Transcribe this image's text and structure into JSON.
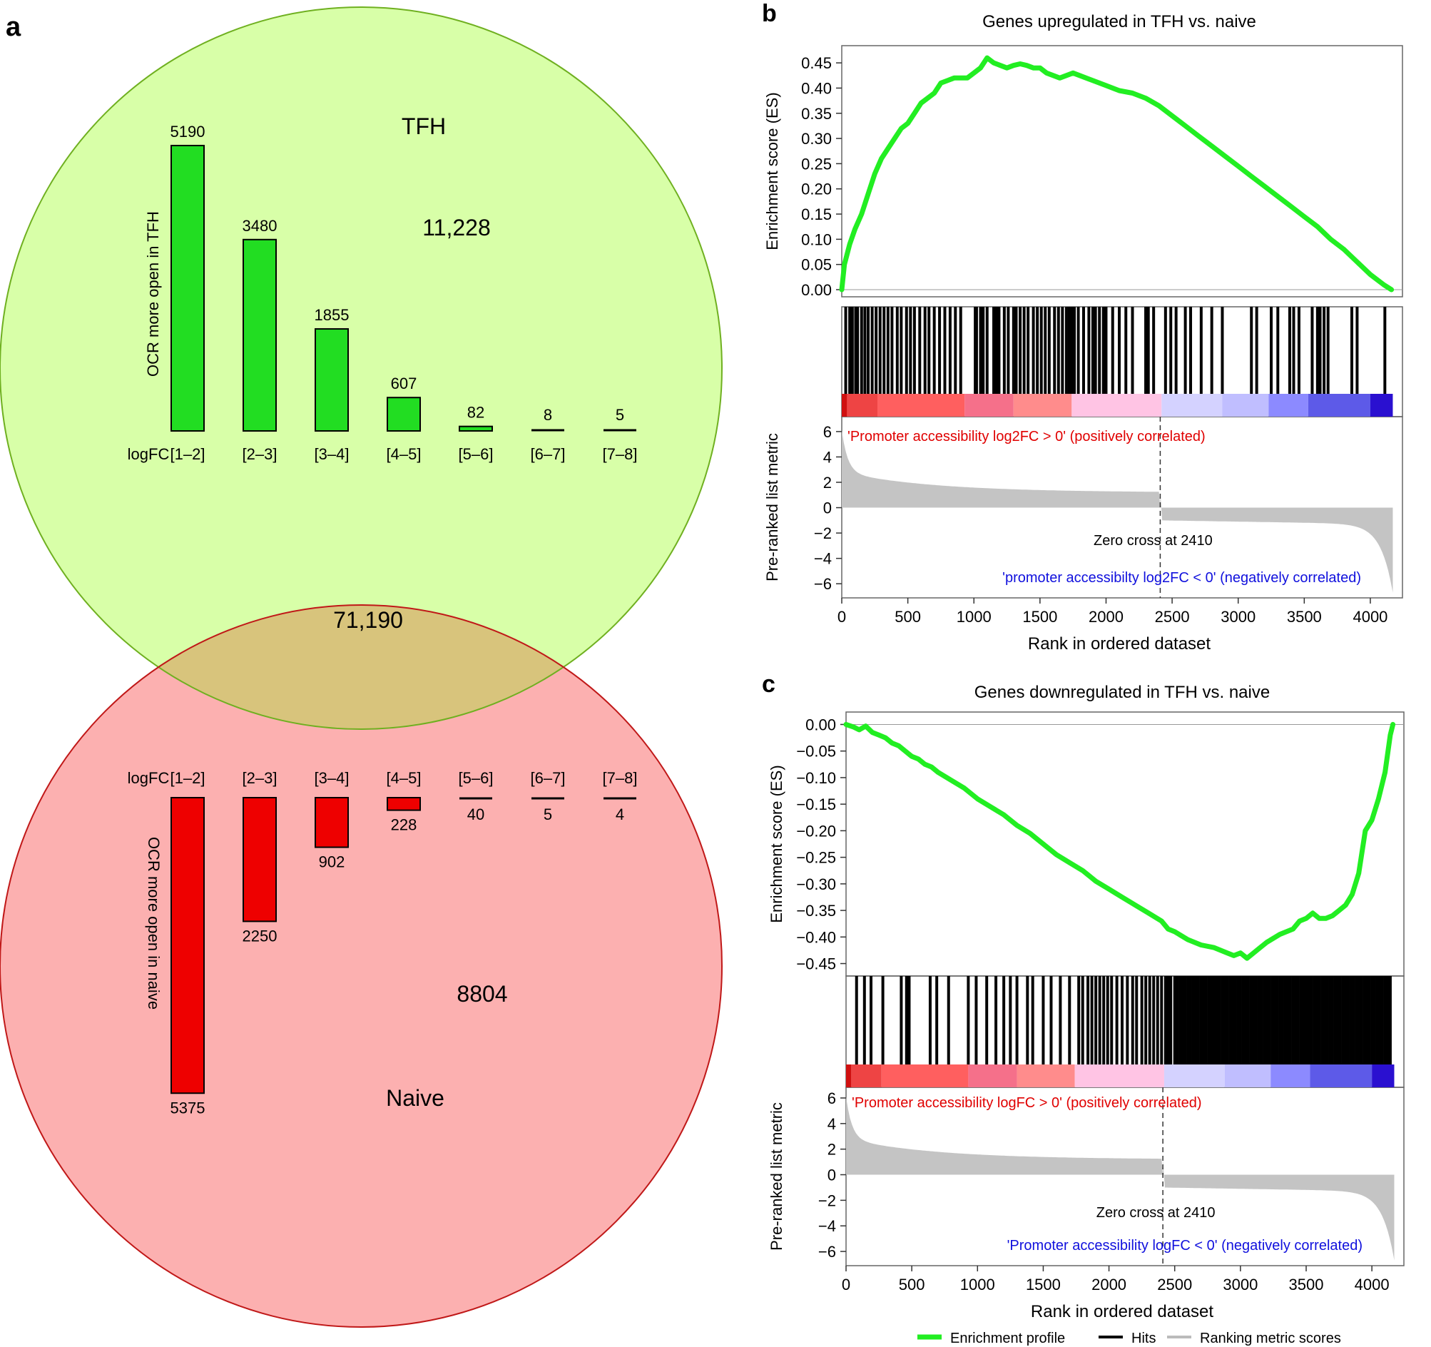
{
  "panels": {
    "a": {
      "label": "a",
      "venn": {
        "tfh_label": "TFH",
        "naive_label": "Naive",
        "tfh_only": "11,228",
        "overlap": "71,190",
        "naive_only": "8804",
        "colors": {
          "tfh_fill": "#d8ffa8",
          "tfh_stroke": "#6fb020",
          "naive_fill": "#fcb0b0",
          "naive_stroke": "#c01818",
          "overlap_fill": "#d8c47c"
        }
      }
    },
    "b": {
      "label": "b"
    },
    "c": {
      "label": "c"
    }
  },
  "chart_data": [
    {
      "id": "tfh-bars",
      "type": "bar",
      "title": "",
      "ylabel": "OCR more open in TFH",
      "xlabel_prefix": "logFC",
      "categories": [
        "[1–2]",
        "[2–3]",
        "[3–4]",
        "[4–5]",
        "[5–6]",
        "[6–7]",
        "[7–8]"
      ],
      "values": [
        5190,
        3480,
        1855,
        607,
        82,
        8,
        5
      ],
      "value_labels": [
        "5190",
        "3480",
        "1855",
        "607",
        "82",
        "8",
        "5"
      ],
      "color": "#22dd22",
      "direction": "up"
    },
    {
      "id": "naive-bars",
      "type": "bar",
      "title": "",
      "ylabel": "OCR more open in naive",
      "xlabel_prefix": "logFC",
      "categories": [
        "[1–2]",
        "[2–3]",
        "[3–4]",
        "[4–5]",
        "[5–6]",
        "[6–7]",
        "[7–8]"
      ],
      "values": [
        5375,
        2250,
        902,
        228,
        40,
        5,
        4
      ],
      "value_labels": [
        "5375",
        "2250",
        "902",
        "228",
        "40",
        "5",
        "4"
      ],
      "color": "#ee0000",
      "direction": "down"
    },
    {
      "id": "gsea-up",
      "type": "line",
      "title": "Genes upregulated in TFH vs. naive",
      "ylabel": "Enrichment score (ES)",
      "ylim": [
        0,
        0.47
      ],
      "yticks": [
        "0.45",
        "0.40",
        "0.35",
        "0.30",
        "0.25",
        "0.20",
        "0.15",
        "0.10",
        "0.05",
        "0.00"
      ],
      "x": [
        0,
        20,
        60,
        100,
        150,
        200,
        250,
        300,
        350,
        400,
        450,
        500,
        550,
        600,
        650,
        700,
        750,
        800,
        850,
        900,
        950,
        1000,
        1050,
        1100,
        1150,
        1200,
        1250,
        1300,
        1350,
        1400,
        1450,
        1500,
        1550,
        1600,
        1650,
        1700,
        1750,
        1800,
        1900,
        2000,
        2100,
        2200,
        2300,
        2400,
        2500,
        2600,
        2700,
        2800,
        2900,
        3000,
        3100,
        3200,
        3300,
        3400,
        3500,
        3600,
        3700,
        3800,
        3900,
        4000,
        4100,
        4160
      ],
      "y": [
        0.0,
        0.05,
        0.09,
        0.12,
        0.15,
        0.19,
        0.23,
        0.26,
        0.28,
        0.3,
        0.32,
        0.33,
        0.35,
        0.37,
        0.38,
        0.39,
        0.41,
        0.415,
        0.42,
        0.42,
        0.42,
        0.43,
        0.44,
        0.46,
        0.45,
        0.445,
        0.44,
        0.445,
        0.448,
        0.445,
        0.44,
        0.44,
        0.43,
        0.425,
        0.42,
        0.425,
        0.43,
        0.425,
        0.415,
        0.405,
        0.395,
        0.39,
        0.38,
        0.365,
        0.345,
        0.325,
        0.305,
        0.285,
        0.265,
        0.245,
        0.225,
        0.205,
        0.185,
        0.165,
        0.145,
        0.125,
        0.1,
        0.08,
        0.055,
        0.03,
        0.01,
        0.0
      ],
      "hits": [
        30,
        60,
        80,
        105,
        120,
        150,
        175,
        200,
        230,
        260,
        290,
        320,
        350,
        380,
        420,
        450,
        490,
        520,
        550,
        590,
        630,
        660,
        700,
        740,
        780,
        820,
        860,
        900,
        1010,
        1020,
        1050,
        1070,
        1100,
        1150,
        1170,
        1190,
        1230,
        1260,
        1300,
        1320,
        1350,
        1380,
        1410,
        1450,
        1480,
        1510,
        1540,
        1570,
        1610,
        1640,
        1670,
        1700,
        1720,
        1740,
        1760,
        1790,
        1830,
        1870,
        1900,
        1920,
        1950,
        1980,
        2000,
        2050,
        2100,
        2150,
        2200,
        2300,
        2320,
        2360,
        2450,
        2490,
        2530,
        2600,
        2640,
        2720,
        2800,
        2880,
        3100,
        3140,
        3250,
        3300,
        3390,
        3420,
        3460,
        3560,
        3600,
        3620,
        3650,
        3680,
        3860,
        3900,
        4110
      ],
      "heatmap": [
        {
          "start": 0,
          "end": 40,
          "color": "#d01010"
        },
        {
          "start": 40,
          "end": 270,
          "color": "#ee4444"
        },
        {
          "start": 270,
          "end": 930,
          "color": "#ff5f5f"
        },
        {
          "start": 930,
          "end": 1300,
          "color": "#f5708a"
        },
        {
          "start": 1300,
          "end": 1740,
          "color": "#ff8c8c"
        },
        {
          "start": 1740,
          "end": 2420,
          "color": "#ffc4e4"
        },
        {
          "start": 2420,
          "end": 2880,
          "color": "#d4d2ff"
        },
        {
          "start": 2880,
          "end": 3230,
          "color": "#c0beff"
        },
        {
          "start": 3230,
          "end": 3530,
          "color": "#8c8aff"
        },
        {
          "start": 3530,
          "end": 4000,
          "color": "#5d5ae8"
        },
        {
          "start": 4000,
          "end": 4170,
          "color": "#2a10d0"
        }
      ],
      "metric_ylabel": "Pre-ranked list metric",
      "metric_yticks": [
        "6",
        "4",
        "2",
        "0",
        "−2",
        "−4",
        "−6"
      ],
      "metric_ylim": [
        -7,
        6.5
      ],
      "metric_positive_label": "'Promoter accessibility log2FC > 0' (positively correlated)",
      "metric_negative_label": "'promoter accessibilty log2FC < 0' (negatively correlated)",
      "zero_cross_label": "Zero cross at 2410",
      "zero_cross": 2410,
      "xlabel": "Rank in ordered dataset",
      "xticks": [
        "0",
        "500",
        "1000",
        "1500",
        "2000",
        "2500",
        "3000",
        "3500",
        "4000"
      ],
      "xlim": [
        0,
        4200
      ],
      "n_genes": 4170
    },
    {
      "id": "gsea-down",
      "type": "line",
      "title": "Genes downregulated in TFH vs. naive",
      "ylabel": "Enrichment score (ES)",
      "ylim": [
        -0.46,
        0.01
      ],
      "yticks": [
        "0.00",
        "−0.05",
        "−0.10",
        "−0.15",
        "−0.20",
        "−0.25",
        "−0.30",
        "−0.35",
        "−0.40",
        "−0.45"
      ],
      "x": [
        0,
        60,
        100,
        150,
        200,
        250,
        300,
        350,
        400,
        450,
        500,
        550,
        600,
        650,
        700,
        800,
        900,
        1000,
        1100,
        1200,
        1300,
        1400,
        1500,
        1600,
        1700,
        1800,
        1900,
        2000,
        2100,
        2200,
        2300,
        2400,
        2450,
        2500,
        2600,
        2700,
        2800,
        2900,
        2950,
        3000,
        3050,
        3100,
        3150,
        3200,
        3300,
        3400,
        3450,
        3500,
        3550,
        3600,
        3650,
        3700,
        3750,
        3800,
        3850,
        3900,
        3950,
        4000,
        4050,
        4100,
        4140,
        4160
      ],
      "y": [
        0.0,
        -0.005,
        -0.01,
        -0.003,
        -0.015,
        -0.02,
        -0.025,
        -0.035,
        -0.04,
        -0.05,
        -0.06,
        -0.065,
        -0.075,
        -0.08,
        -0.09,
        -0.105,
        -0.12,
        -0.14,
        -0.155,
        -0.17,
        -0.19,
        -0.205,
        -0.225,
        -0.245,
        -0.26,
        -0.275,
        -0.295,
        -0.31,
        -0.325,
        -0.34,
        -0.355,
        -0.37,
        -0.385,
        -0.39,
        -0.405,
        -0.415,
        -0.42,
        -0.43,
        -0.435,
        -0.43,
        -0.44,
        -0.43,
        -0.42,
        -0.41,
        -0.395,
        -0.385,
        -0.37,
        -0.365,
        -0.355,
        -0.365,
        -0.365,
        -0.36,
        -0.35,
        -0.34,
        -0.32,
        -0.28,
        -0.2,
        -0.18,
        -0.14,
        -0.09,
        -0.02,
        0.0
      ],
      "hits": [
        80,
        140,
        190,
        280,
        420,
        460,
        480,
        640,
        690,
        780,
        930,
        990,
        1070,
        1140,
        1200,
        1250,
        1300,
        1380,
        1420,
        1500,
        1560,
        1630,
        1700,
        1770,
        1800,
        1840,
        1870,
        1900,
        1930,
        1960,
        1990,
        2020,
        2060,
        2100,
        2140,
        2180,
        2210,
        2250,
        2280,
        2310,
        2340,
        2370,
        2400,
        2430,
        2450,
        2470,
        2500,
        2520,
        2540,
        2560,
        2580,
        2600,
        2620,
        2640,
        2660,
        2680,
        2700,
        2720,
        2740,
        2760,
        2780,
        2800,
        2820,
        2840,
        2860,
        2880,
        2900,
        2920,
        2940,
        2960,
        2980,
        3000,
        3020,
        3040,
        3060,
        3080,
        3100,
        3120,
        3140,
        3160,
        3180,
        3200,
        3220,
        3240,
        3260,
        3280,
        3300,
        3320,
        3340,
        3360,
        3380,
        3400,
        3420,
        3440,
        3460,
        3480,
        3500,
        3520,
        3540,
        3560,
        3580,
        3600,
        3620,
        3640,
        3660,
        3680,
        3700,
        3720,
        3740,
        3760,
        3780,
        3800,
        3820,
        3840,
        3860,
        3880,
        3900,
        3920,
        3940,
        3960,
        3980,
        4000,
        4020,
        4040,
        4060,
        4080,
        4100,
        4120,
        4140
      ],
      "heatmap": [
        {
          "start": 0,
          "end": 40,
          "color": "#d01010"
        },
        {
          "start": 40,
          "end": 270,
          "color": "#ee4444"
        },
        {
          "start": 270,
          "end": 930,
          "color": "#ff5f5f"
        },
        {
          "start": 930,
          "end": 1300,
          "color": "#f5708a"
        },
        {
          "start": 1300,
          "end": 1740,
          "color": "#ff8c8c"
        },
        {
          "start": 1740,
          "end": 2420,
          "color": "#ffc4e4"
        },
        {
          "start": 2420,
          "end": 2880,
          "color": "#d4d2ff"
        },
        {
          "start": 2880,
          "end": 3230,
          "color": "#c0beff"
        },
        {
          "start": 3230,
          "end": 3530,
          "color": "#8c8aff"
        },
        {
          "start": 3530,
          "end": 4000,
          "color": "#5d5ae8"
        },
        {
          "start": 4000,
          "end": 4170,
          "color": "#2a10d0"
        }
      ],
      "metric_ylabel": "Pre-ranked list metric",
      "metric_yticks": [
        "6",
        "4",
        "2",
        "0",
        "−2",
        "−4",
        "−6"
      ],
      "metric_ylim": [
        -7,
        6.5
      ],
      "metric_positive_label": "'Promoter accessibility logFC > 0' (positively correlated)",
      "metric_negative_label": "'Promoter accessibility logFC < 0' (negatively correlated)",
      "zero_cross_label": "Zero cross at 2410",
      "zero_cross": 2410,
      "xlabel": "Rank in ordered dataset",
      "xticks": [
        "0",
        "500",
        "1000",
        "1500",
        "2000",
        "2500",
        "3000",
        "3500",
        "4000"
      ],
      "xlim": [
        0,
        4200
      ],
      "n_genes": 4170
    }
  ],
  "legend": {
    "items": [
      {
        "label": "Enrichment profile",
        "color": "#22ee22"
      },
      {
        "label": "Hits",
        "color": "#000000"
      },
      {
        "label": "Ranking metric scores",
        "color": "#bbbbbb"
      }
    ]
  }
}
